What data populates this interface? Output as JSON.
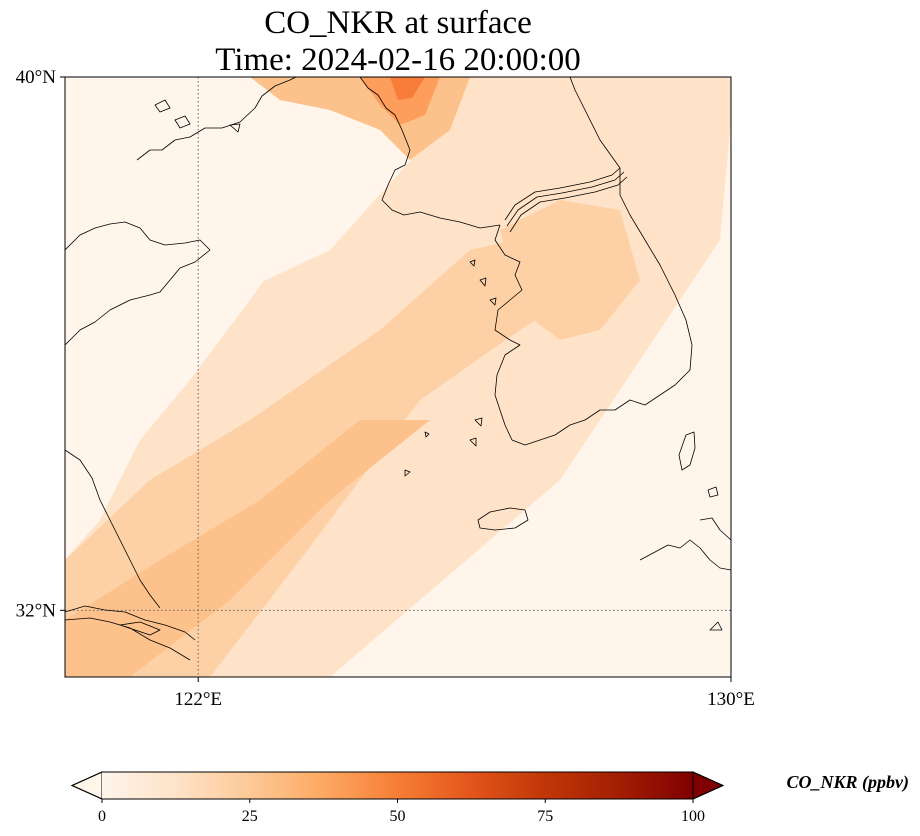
{
  "title": {
    "line1": "CO_NKR at surface",
    "line2": "Time: 2024-02-16 20:00:00"
  },
  "map": {
    "lon_range": [
      120,
      130
    ],
    "lat_range": [
      31,
      40
    ],
    "gridlines": {
      "lon": [
        122
      ],
      "lat": [
        32
      ]
    },
    "lon_ticks": [
      {
        "value": 122,
        "label": "122°E"
      },
      {
        "value": 130,
        "label": "130°E"
      }
    ],
    "lat_ticks": [
      {
        "value": 40,
        "label": "40°N"
      },
      {
        "value": 32,
        "label": "32°N"
      }
    ],
    "field_colors": {
      "c0": "#fff5eb",
      "c10": "#fee3c8",
      "c20": "#fdd1a5",
      "c25": "#fdc28c",
      "c35": "#fd9e5c",
      "c45": "#f77d39"
    }
  },
  "colorbar": {
    "label": "CO_NKR (ppbv)",
    "min": 0,
    "max": 100,
    "ticks": [
      {
        "value": 0,
        "label": "0"
      },
      {
        "value": 25,
        "label": "25"
      },
      {
        "value": 50,
        "label": "50"
      },
      {
        "value": 75,
        "label": "75"
      },
      {
        "value": 100,
        "label": "100"
      }
    ],
    "colormap": [
      "#fff5eb",
      "#fee3c8",
      "#fdc997",
      "#fda863",
      "#f67e35",
      "#e2561b",
      "#c03707",
      "#a31e03",
      "#7f0000"
    ]
  }
}
